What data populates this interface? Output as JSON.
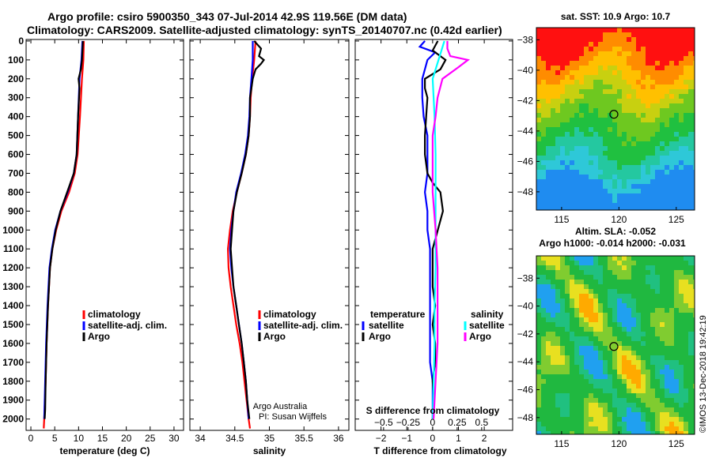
{
  "header": {
    "title_line1": "Argo profile: csiro 5900350_343 07-Jul-2014 42.9S 119.56E (DM data)",
    "title_line2": "Climatology: CARS2009. Satellite-adjusted climatology: synTS_20140707.nc (0.42d earlier)"
  },
  "colors": {
    "climatology": "#ff0000",
    "satellite": "#0000ff",
    "argo": "#000000",
    "sat_s": "#00ffff",
    "argo_s": "#ff00ff"
  },
  "chart_data": [
    {
      "id": "temperature",
      "type": "line",
      "xlabel": "temperature (deg C)",
      "ylabel": "depth",
      "xlim": [
        -1,
        32
      ],
      "ylim": [
        2060,
        -8
      ],
      "x_ticks": [
        "0",
        "5",
        "10",
        "15",
        "20",
        "25",
        "30"
      ],
      "y_ticks": [
        "0",
        "100",
        "200",
        "300",
        "400",
        "500",
        "600",
        "700",
        "800",
        "900",
        "1000",
        "1100",
        "1200",
        "1300",
        "1400",
        "1500",
        "1600",
        "1700",
        "1800",
        "1900",
        "2000"
      ],
      "legend": [
        "climatology",
        "satellite-adj. clim.",
        "Argo"
      ],
      "series": [
        {
          "name": "climatology",
          "color": "#ff0000",
          "depth": [
            0,
            100,
            200,
            400,
            600,
            700,
            800,
            900,
            1000,
            1100,
            1200,
            1400,
            1600,
            1800,
            2000,
            2050
          ],
          "values": [
            11.1,
            11.0,
            10.7,
            10.3,
            9.8,
            9.2,
            8.0,
            6.4,
            5.3,
            4.5,
            4.0,
            3.6,
            3.3,
            3.1,
            2.8,
            2.7
          ]
        },
        {
          "name": "satellite-adj. clim.",
          "color": "#0000ff",
          "depth": [
            0,
            100,
            200,
            400,
            600,
            700,
            800,
            900,
            1000,
            1100,
            1200,
            1400,
            1600,
            1800,
            2000
          ],
          "values": [
            10.8,
            10.6,
            10.2,
            9.9,
            9.6,
            9.0,
            7.7,
            6.2,
            5.1,
            4.4,
            3.9,
            3.5,
            3.2,
            3.0,
            2.8
          ]
        },
        {
          "name": "Argo",
          "color": "#000000",
          "depth": [
            0,
            50,
            100,
            150,
            200,
            250,
            400,
            600,
            700,
            800,
            900,
            1000,
            1100,
            1200,
            1400,
            1600,
            1800,
            1950,
            2000
          ],
          "values": [
            10.9,
            10.8,
            10.7,
            10.5,
            10.0,
            10.2,
            9.9,
            9.6,
            9.0,
            7.6,
            6.2,
            5.2,
            4.5,
            4.0,
            3.6,
            3.3,
            3.1,
            3.0,
            2.9
          ]
        }
      ]
    },
    {
      "id": "salinity",
      "type": "line",
      "xlabel": "salinity",
      "ylabel": "depth",
      "xlim": [
        33.85,
        36.15
      ],
      "ylim": [
        2060,
        -8
      ],
      "x_ticks": [
        "34",
        "34.5",
        "35",
        "35.5",
        "36"
      ],
      "legend": [
        "climatology",
        "satellite-adj. clim.",
        "Argo"
      ],
      "annotations": [
        "Argo Australia",
        "PI: Susan Wijffels"
      ],
      "series": [
        {
          "name": "climatology",
          "color": "#ff0000",
          "depth": [
            0,
            100,
            200,
            300,
            400,
            500,
            600,
            700,
            800,
            900,
            1000,
            1100,
            1200,
            1300,
            1400,
            1500,
            1600,
            1700,
            1800,
            1900,
            2000,
            2050
          ],
          "values": [
            34.8,
            34.78,
            34.75,
            34.73,
            34.72,
            34.7,
            34.66,
            34.6,
            34.53,
            34.47,
            34.43,
            34.4,
            34.41,
            34.44,
            34.48,
            34.52,
            34.57,
            34.61,
            34.64,
            34.67,
            34.7,
            34.72
          ]
        },
        {
          "name": "satellite-adj. clim.",
          "color": "#0000ff",
          "depth": [
            0,
            100,
            200,
            300,
            400,
            500,
            600,
            700,
            800,
            900,
            1000,
            1100,
            1200,
            1300,
            1400,
            1500,
            1600,
            1700,
            1800,
            1900,
            2000
          ],
          "values": [
            34.76,
            34.76,
            34.74,
            34.72,
            34.71,
            34.69,
            34.65,
            34.59,
            34.52,
            34.48,
            34.45,
            34.43,
            34.45,
            34.48,
            34.52,
            34.56,
            34.6,
            34.63,
            34.66,
            34.68,
            34.7
          ]
        },
        {
          "name": "Argo",
          "color": "#000000",
          "depth": [
            0,
            40,
            80,
            100,
            120,
            150,
            200,
            250,
            300,
            400,
            500,
            600,
            700,
            800,
            900,
            1000,
            1100,
            1200,
            1300,
            1400,
            1500,
            1600,
            1700,
            1800,
            1900,
            2000
          ],
          "values": [
            34.78,
            34.88,
            34.85,
            34.92,
            34.88,
            34.8,
            34.76,
            34.74,
            34.72,
            34.72,
            34.7,
            34.66,
            34.6,
            34.53,
            34.48,
            34.46,
            34.44,
            34.46,
            34.48,
            34.52,
            34.56,
            34.6,
            34.63,
            34.66,
            34.68,
            34.71
          ]
        }
      ]
    },
    {
      "id": "difference",
      "type": "line",
      "xlabel": "T difference from climatology",
      "ylabel": "depth",
      "xlim": [
        -3,
        3.1
      ],
      "ylim": [
        2060,
        -8
      ],
      "x_ticks": [
        "-2",
        "-1",
        "0",
        "1",
        "2"
      ],
      "s_axis_label": "S difference from climatology",
      "s_ticks": [
        "-0.5",
        "-0.25",
        "0",
        "0.25",
        "0.5"
      ],
      "legend_left": [
        "temperature",
        "satellite",
        "Argo"
      ],
      "legend_right": [
        "salinity",
        "satellite",
        "Argo"
      ],
      "series": [
        {
          "name": "T satellite",
          "color": "#0000ff",
          "depth": [
            0,
            30,
            60,
            100,
            200,
            300,
            400,
            500,
            600,
            700,
            800,
            900,
            1000,
            1100,
            1200,
            1300,
            1400,
            1500,
            1600,
            1700,
            1800,
            1900,
            2000
          ],
          "values": [
            -0.3,
            -0.5,
            0.1,
            -0.2,
            -0.4,
            -0.4,
            -0.35,
            -0.2,
            -0.2,
            -0.2,
            -0.3,
            -0.2,
            -0.2,
            -0.1,
            -0.1,
            -0.1,
            -0.1,
            -0.1,
            -0.1,
            -0.1,
            0.0,
            0.0,
            0.0
          ]
        },
        {
          "name": "T Argo",
          "color": "#000000",
          "depth": [
            0,
            50,
            100,
            150,
            200,
            250,
            300,
            400,
            500,
            600,
            700,
            750,
            800,
            900,
            1000,
            1100,
            1200,
            1300,
            1400,
            1500,
            1600,
            1700,
            1800,
            1900,
            2000
          ],
          "values": [
            0.2,
            0.0,
            0.5,
            0.3,
            -0.3,
            -0.3,
            -0.2,
            -0.25,
            -0.3,
            -0.3,
            -0.2,
            0.0,
            0.3,
            0.4,
            0.2,
            0.0,
            0.0,
            0.0,
            0.1,
            0.0,
            0.1,
            0.1,
            0.0,
            0.05,
            0.0
          ]
        },
        {
          "name": "S satellite",
          "color": "#00ffff",
          "depth": [
            0,
            100,
            200,
            400,
            600,
            800,
            1000,
            1200,
            1400,
            1600,
            1800,
            2000
          ],
          "values": [
            0.12,
            0.06,
            0.0,
            0.02,
            0.03,
            0.03,
            0.03,
            0.03,
            0.02,
            0.02,
            0.01,
            0.0
          ]
        },
        {
          "name": "S Argo",
          "color": "#ff00ff",
          "depth": [
            0,
            40,
            80,
            100,
            140,
            200,
            300,
            400,
            500,
            600,
            800,
            1000,
            1200,
            1400,
            1600,
            1800,
            2000
          ],
          "values": [
            0.15,
            0.15,
            0.18,
            0.36,
            0.26,
            0.1,
            0.05,
            0.03,
            0.0,
            0.0,
            0.0,
            0.03,
            0.05,
            0.05,
            0.05,
            0.03,
            0.01
          ]
        }
      ]
    }
  ],
  "maps": [
    {
      "id": "sst-map",
      "title": "sat. SST: 10.9 Argo: 10.7",
      "subtitle": "",
      "lon_range": [
        112.8,
        126.6
      ],
      "lat_range": [
        -49.2,
        -37.2
      ],
      "lon_ticks": [
        "115",
        "120",
        "125"
      ],
      "lat_ticks": [
        "-38",
        "-40",
        "-42",
        "-44",
        "-46",
        "-48"
      ],
      "marker": {
        "lon": 119.56,
        "lat": -42.9
      }
    },
    {
      "id": "sla-map",
      "title": "Altim. SLA: -0.052",
      "subtitle": "Argo h1000: -0.014 h2000: -0.031",
      "lon_range": [
        112.8,
        126.6
      ],
      "lat_range": [
        -49.2,
        -36.4
      ],
      "lon_ticks": [
        "115",
        "120",
        "125"
      ],
      "lat_ticks": [
        "-38",
        "-40",
        "-42",
        "-44",
        "-46",
        "-48"
      ],
      "marker": {
        "lon": 119.56,
        "lat": -42.9
      }
    }
  ],
  "credit": "©IMOS 13-Dec-2018 19:42:19"
}
